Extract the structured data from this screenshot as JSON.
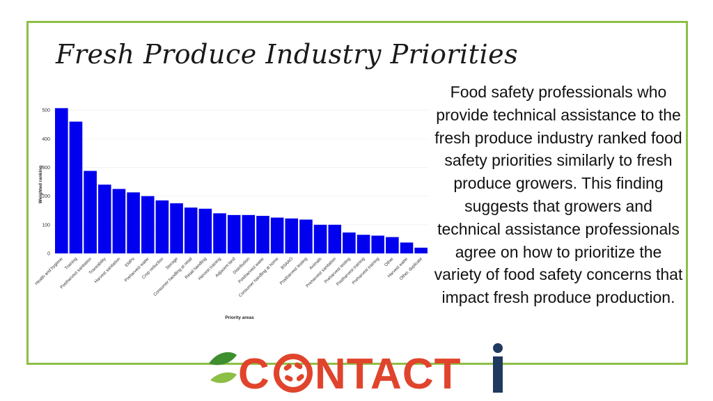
{
  "slide": {
    "title": "Fresh Produce Industry Priorities",
    "body": "Food safety professionals who provide technical assistance to the fresh produce industry ranked food safety priorities similarly to fresh produce growers. This finding suggests that growers and technical assistance professionals agree on how to prioritize the variety of food safety concerns that impact fresh produce production."
  },
  "logo": {
    "text_before": "C",
    "text_after": "NTACT",
    "colors": {
      "red": "#e0442c",
      "green_dark": "#3f8f2f",
      "green_light": "#8cbf45",
      "navy": "#1f3a5f"
    }
  },
  "colors": {
    "bar": "#0000ee",
    "border": "#8cbf45",
    "grid": "#ececec"
  },
  "chart_data": {
    "type": "bar",
    "title": "",
    "xlabel": "Priority areas",
    "ylabel": "Weighted ranking",
    "ylim": [
      0,
      500
    ],
    "yticks": [
      0,
      100,
      200,
      300,
      400,
      500
    ],
    "categories": [
      "Health and hygiene",
      "Training",
      "Postharvest sanitation",
      "Traceability",
      "Harvest sanitation",
      "EMPs",
      "Preharvest water",
      "Crop reduction",
      "Storage",
      "Consumer handling at retail",
      "Retail handling",
      "Harvest training",
      "Adjacent land",
      "Distribution",
      "Postharvest water",
      "Consumer handling at home",
      "BSAAO",
      "Postharvest testing",
      "Animals",
      "Preharvest sanitation",
      "Preharvest testing",
      "Postharvest training",
      "Preharvest training",
      "Other",
      "Harvest water",
      "Other, duplicate"
    ],
    "values": [
      507,
      460,
      288,
      240,
      225,
      213,
      200,
      185,
      175,
      160,
      156,
      140,
      134,
      134,
      131,
      125,
      122,
      118,
      100,
      100,
      73,
      65,
      62,
      57,
      38,
      20
    ]
  }
}
